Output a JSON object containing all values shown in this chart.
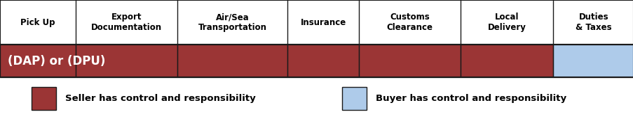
{
  "columns": [
    "Pick Up",
    "Export\nDocumentation",
    "Air/Sea\nTransportation",
    "Insurance",
    "Customs\nClearance",
    "Local\nDelivery",
    "Duties\n& Taxes"
  ],
  "col_widths": [
    0.9,
    1.2,
    1.3,
    0.85,
    1.2,
    1.1,
    0.95
  ],
  "seller_color": "#9B3535",
  "buyer_color": "#AECBEA",
  "bar_label": "(DAP) or (DPU)",
  "seller_cols": [
    0,
    1,
    2,
    3,
    4,
    5
  ],
  "buyer_cols": [
    6
  ],
  "header_fontsize": 8.5,
  "bar_label_fontsize": 12,
  "legend_fontsize": 9.5,
  "bg_color": "#FFFFFF",
  "border_color": "#1a1a1a",
  "seller_legend": "Seller has control and responsibility",
  "buyer_legend": "Buyer has control and responsibility"
}
